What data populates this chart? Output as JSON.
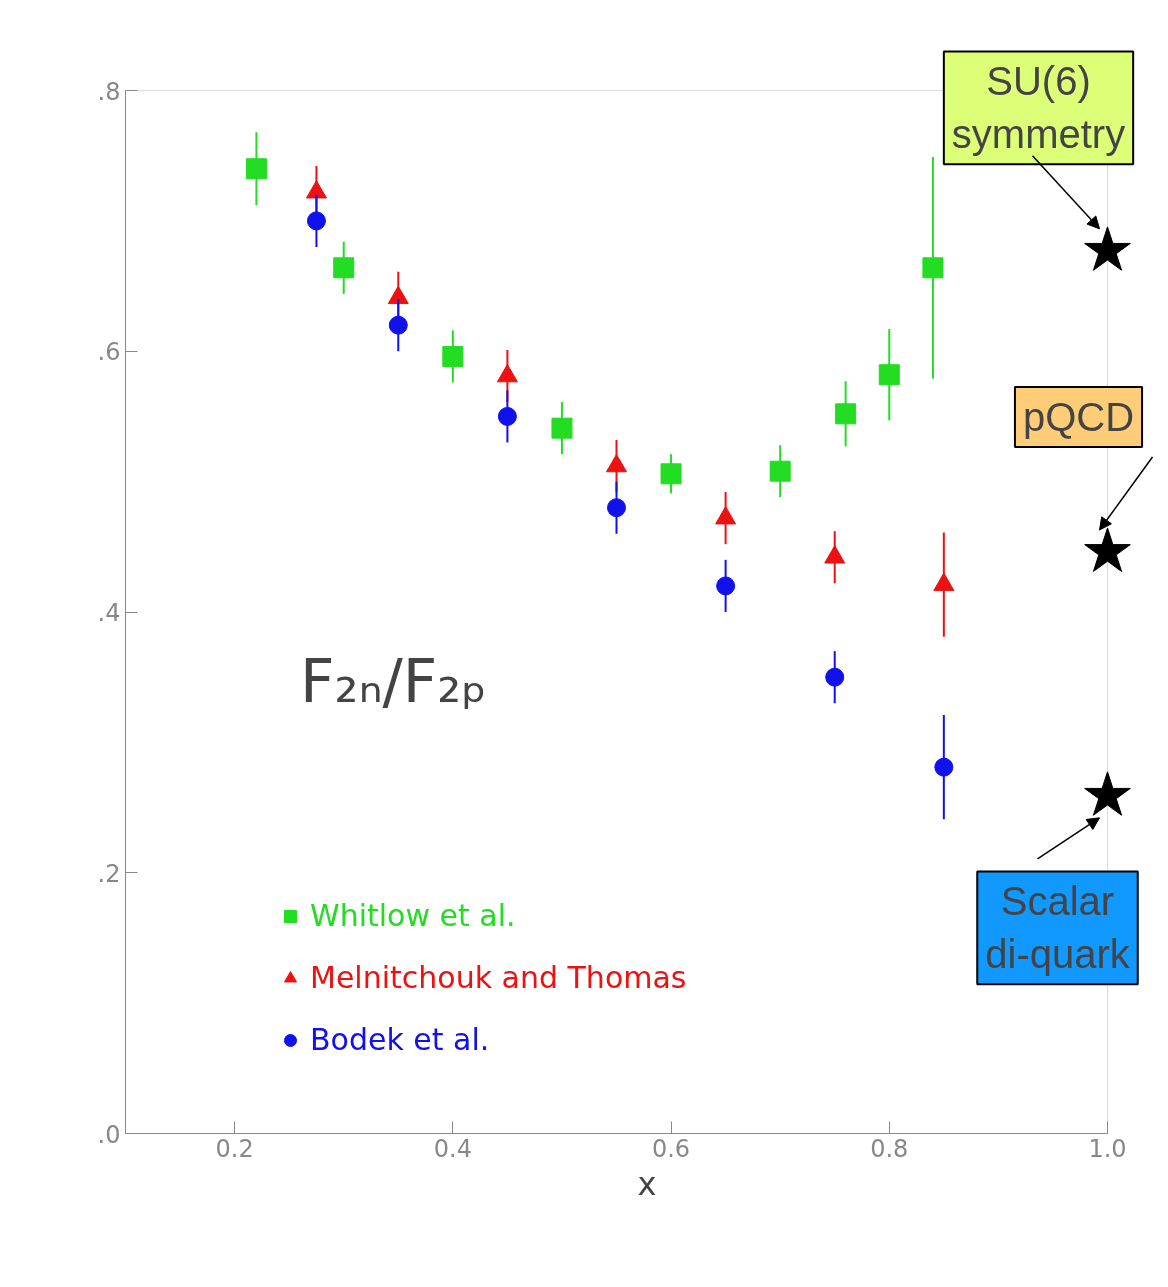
{
  "chart_data": {
    "type": "scatter",
    "xlabel": "x",
    "xlim": [
      0.1,
      1.0
    ],
    "ylim": [
      0,
      0.8
    ],
    "xticks": [
      0.2,
      0.4,
      0.6,
      0.8,
      {
        "value": 1.0,
        "label": "1.0"
      }
    ],
    "yticks": [
      {
        "value": 0,
        "label": ".0"
      },
      {
        "value": 0.2,
        "label": ".2"
      },
      {
        "value": 0.4,
        "label": ".4"
      },
      {
        "value": 0.6,
        "label": ".6"
      },
      {
        "value": 0.8,
        "label": ".8"
      }
    ],
    "grid": false,
    "legend": "bottom left",
    "series": [
      {
        "name": "Whitlow et al.",
        "color": "#22dd22",
        "marker": "square",
        "x": [
          0.22,
          0.3,
          0.4,
          0.5,
          0.6,
          0.7,
          0.76,
          0.8,
          0.84
        ],
        "values": [
          0.74,
          0.664,
          0.596,
          0.541,
          0.506,
          0.508,
          0.552,
          0.582,
          0.664
        ],
        "errors": [
          0.028,
          0.02,
          0.02,
          0.02,
          0.015,
          0.02,
          0.025,
          0.035,
          0.085
        ]
      },
      {
        "name": "Melnitchouk and Thomas",
        "color": "#ee1111",
        "marker": "triangle",
        "x": [
          0.275,
          0.35,
          0.45,
          0.55,
          0.65,
          0.75,
          0.85
        ],
        "values": [
          0.722,
          0.641,
          0.581,
          0.512,
          0.472,
          0.442,
          0.421
        ],
        "errors": [
          0.02,
          0.02,
          0.02,
          0.02,
          0.02,
          0.02,
          0.04
        ]
      },
      {
        "name": "Bodek et al.",
        "color": "#1111ee",
        "marker": "circle",
        "x": [
          0.275,
          0.35,
          0.45,
          0.55,
          0.65,
          0.75,
          0.85
        ],
        "values": [
          0.7,
          0.62,
          0.55,
          0.48,
          0.42,
          0.35,
          0.281
        ],
        "errors": [
          0.02,
          0.02,
          0.02,
          0.02,
          0.02,
          0.02,
          0.04
        ]
      },
      {
        "color": "#000000",
        "marker": "star",
        "x": [
          1.0,
          1.0,
          1.0
        ],
        "values": [
          0.677,
          0.446,
          0.259
        ]
      }
    ],
    "annotations": [
      {
        "text": "F₂ₙ/F₂ₚ"
      },
      "SU(6)\nsymmetry",
      "pQCD",
      "Scalar\ndi-quark"
    ]
  }
}
